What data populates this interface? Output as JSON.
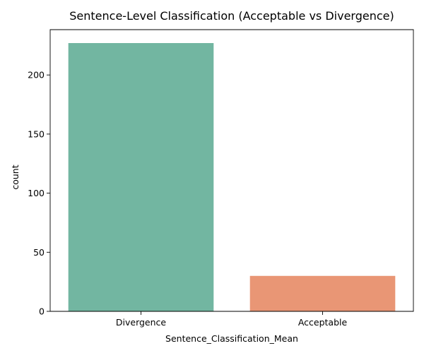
{
  "chart_data": {
    "type": "bar",
    "title": "Sentence-Level Classification (Acceptable vs Divergence)",
    "xlabel": "Sentence_Classification_Mean",
    "ylabel": "count",
    "categories": [
      "Divergence",
      "Acceptable"
    ],
    "values": [
      227,
      30
    ],
    "colors": [
      "#72b6a1",
      "#e99675"
    ],
    "ylim": [
      0,
      238.35
    ],
    "yticks": [
      0,
      50,
      100,
      150,
      200
    ],
    "grid": false,
    "legend": "none"
  }
}
